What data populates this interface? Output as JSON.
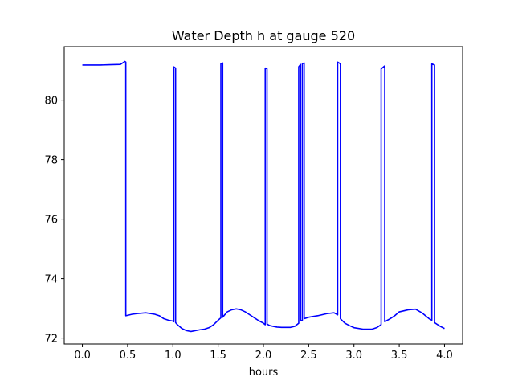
{
  "chart_data": {
    "type": "line",
    "title": "Water Depth h at gauge 520",
    "xlabel": "hours",
    "ylabel": "",
    "xlim": [
      -0.2,
      4.2
    ],
    "ylim": [
      71.8,
      81.8
    ],
    "xticks": [
      0.0,
      0.5,
      1.0,
      1.5,
      2.0,
      2.5,
      3.0,
      3.5,
      4.0
    ],
    "xtick_labels": [
      "0.0",
      "0.5",
      "1.0",
      "1.5",
      "2.0",
      "2.5",
      "3.0",
      "3.5",
      "4.0"
    ],
    "yticks": [
      72,
      74,
      76,
      78,
      80
    ],
    "ytick_labels": [
      "72",
      "74",
      "76",
      "78",
      "80"
    ],
    "grid": false,
    "series": [
      {
        "color": "#0000ff",
        "x": [
          0.0,
          0.2,
          0.3,
          0.42,
          0.47,
          0.48,
          0.48,
          0.55,
          0.6,
          0.7,
          0.8,
          0.85,
          0.9,
          0.95,
          1.0,
          1.01,
          1.01,
          1.02,
          1.03,
          1.03,
          1.05,
          1.1,
          1.15,
          1.2,
          1.3,
          1.35,
          1.4,
          1.45,
          1.5,
          1.53,
          1.53,
          1.55,
          1.55,
          1.6,
          1.65,
          1.7,
          1.75,
          1.8,
          1.85,
          1.9,
          1.95,
          2.0,
          2.02,
          2.02,
          2.04,
          2.04,
          2.07,
          2.1,
          2.15,
          2.2,
          2.3,
          2.35,
          2.39,
          2.39,
          2.41,
          2.41,
          2.43,
          2.43,
          2.45,
          2.45,
          2.5,
          2.6,
          2.7,
          2.78,
          2.82,
          2.82,
          2.85,
          2.85,
          2.9,
          2.95,
          3.0,
          3.1,
          3.2,
          3.25,
          3.3,
          3.3,
          3.34,
          3.34,
          3.4,
          3.45,
          3.5,
          3.6,
          3.68,
          3.75,
          3.83,
          3.86,
          3.86,
          3.89,
          3.89,
          3.95,
          4.0
        ],
        "values": [
          81.18,
          81.18,
          81.19,
          81.2,
          81.3,
          81.28,
          72.75,
          72.8,
          72.82,
          72.85,
          72.8,
          72.75,
          72.65,
          72.6,
          72.57,
          72.55,
          81.12,
          81.1,
          81.08,
          72.52,
          72.45,
          72.32,
          72.25,
          72.22,
          72.28,
          72.3,
          72.35,
          72.45,
          72.6,
          72.68,
          81.22,
          81.25,
          72.7,
          72.88,
          72.95,
          72.98,
          72.95,
          72.88,
          72.78,
          72.68,
          72.58,
          72.5,
          72.45,
          81.08,
          81.05,
          72.47,
          72.42,
          72.4,
          72.37,
          72.36,
          72.36,
          72.4,
          72.5,
          81.12,
          81.2,
          72.58,
          72.6,
          81.22,
          81.25,
          72.65,
          72.7,
          72.75,
          72.82,
          72.85,
          72.78,
          81.28,
          81.22,
          72.65,
          72.5,
          72.42,
          72.35,
          72.3,
          72.3,
          72.35,
          72.45,
          81.05,
          81.15,
          72.55,
          72.65,
          72.75,
          72.88,
          72.95,
          72.97,
          72.85,
          72.65,
          72.6,
          81.22,
          81.18,
          72.52,
          72.4,
          72.32
        ]
      }
    ]
  }
}
